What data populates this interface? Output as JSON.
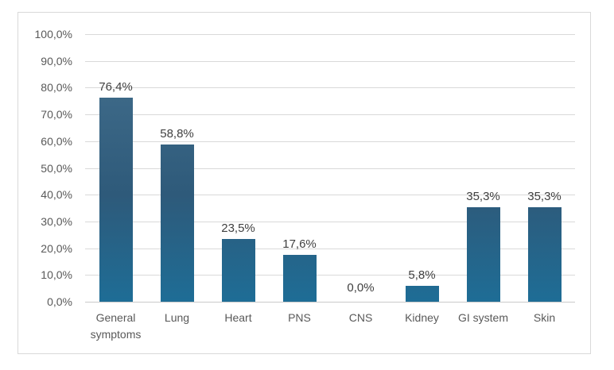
{
  "chart_data": {
    "type": "bar",
    "title": "",
    "xlabel": "",
    "ylabel": "",
    "categories": [
      "General symptoms",
      "Lung",
      "Heart",
      "PNS",
      "CNS",
      "Kidney",
      "GI system",
      "Skin"
    ],
    "values": [
      76.4,
      58.8,
      23.5,
      17.6,
      0.0,
      5.8,
      35.3,
      35.3
    ],
    "value_labels": [
      "76,4%",
      "58,8%",
      "23,5%",
      "17,6%",
      "0,0%",
      "5,8%",
      "35,3%",
      "35,3%"
    ],
    "y_tick_labels": [
      "100,0%",
      "90,0%",
      "80,0%",
      "70,0%",
      "60,0%",
      "50,0%",
      "40,0%",
      "30,0%",
      "20,0%",
      "10,0%",
      "0,0%"
    ],
    "ylim": [
      0,
      100
    ],
    "grid": true,
    "legend": false,
    "decimal_separator": ",",
    "colors": {
      "bar_gradient_top": "#45718F",
      "bar_gradient_mid": "#2E5A7A",
      "bar_gradient_bottom": "#1E6D96",
      "gridline": "#D9D9D9",
      "axis_line": "#C9C9C9",
      "tick_label": "#595959",
      "category_label": "#595959",
      "data_label": "#404040",
      "frame_border": "#D9D9D9",
      "background": "#FFFFFF"
    }
  }
}
